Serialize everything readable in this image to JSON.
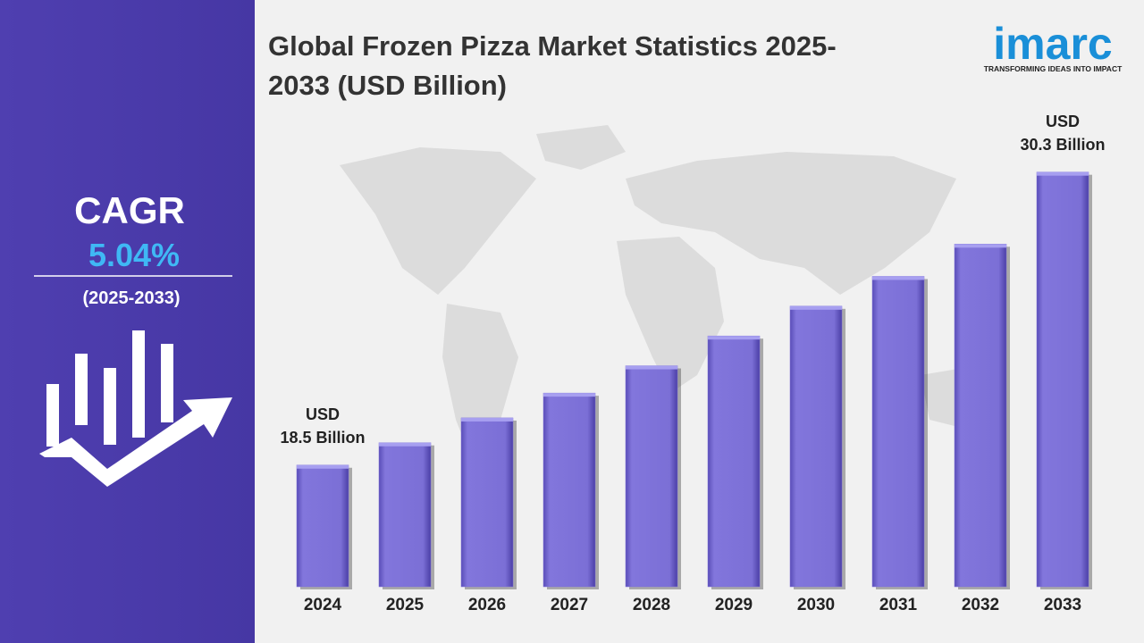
{
  "left_panel": {
    "label": "CAGR",
    "value": "5.04%",
    "period": "(2025-2033)"
  },
  "logo": {
    "name": "imarc",
    "tagline": "TRANSFORMING IDEAS INTO IMPACT"
  },
  "chart_data": {
    "type": "bar",
    "title": "Global Frozen Pizza Market Statistics 2025-2033 (USD Billion)",
    "categories": [
      "2024",
      "2025",
      "2026",
      "2027",
      "2028",
      "2029",
      "2030",
      "2031",
      "2032",
      "2033"
    ],
    "values": [
      18.5,
      19.4,
      20.4,
      21.4,
      22.5,
      23.7,
      24.9,
      26.1,
      27.4,
      30.3
    ],
    "value_labels": [
      "USD\n18.5 Billion",
      null,
      null,
      null,
      null,
      null,
      null,
      null,
      null,
      "USD\n30.3 Billion"
    ],
    "color": "#7d70d8",
    "ylim": [
      13.6,
      30.9
    ]
  }
}
